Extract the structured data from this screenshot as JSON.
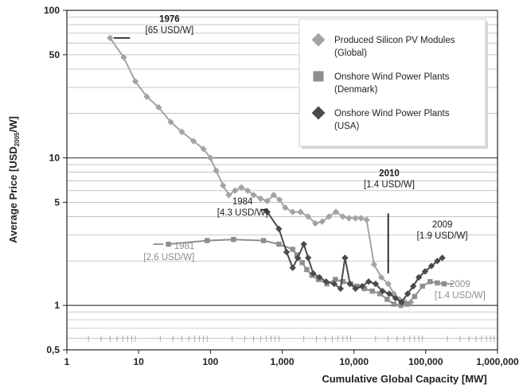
{
  "chart_data": {
    "type": "line",
    "xscale": "log",
    "yscale": "log",
    "xlim": [
      1,
      1000000
    ],
    "ylim": [
      0.5,
      100
    ],
    "xlabel": "Cumulative Global Capacity [MW]",
    "ylabel": {
      "pre": "Average Price [USD",
      "sub": "2005",
      "post": "/W]"
    },
    "x_ticks": [
      {
        "value": 1,
        "label": "1"
      },
      {
        "value": 10,
        "label": "10"
      },
      {
        "value": 100,
        "label": "100"
      },
      {
        "value": 1000,
        "label": "1,000"
      },
      {
        "value": 10000,
        "label": "10,000"
      },
      {
        "value": 100000,
        "label": "100,000"
      },
      {
        "value": 1000000,
        "label": "1,000,000"
      }
    ],
    "y_ticks": [
      {
        "value": 0.5,
        "label": "0,5"
      },
      {
        "value": 1,
        "label": "1"
      },
      {
        "value": 5,
        "label": "5"
      },
      {
        "value": 10,
        "label": "10"
      },
      {
        "value": 50,
        "label": "50"
      },
      {
        "value": 100,
        "label": "100"
      }
    ],
    "grid": true,
    "legend_position": "top-right",
    "series": [
      {
        "name": "Produced Silicon PV Modules (Global)",
        "legend_lines": [
          "Produced Silicon PV Modules",
          "(Global)"
        ],
        "marker": "diamond",
        "color": "#a3a3a3",
        "points": [
          [
            4,
            65
          ],
          [
            6.2,
            48
          ],
          [
            9,
            33
          ],
          [
            13,
            26
          ],
          [
            19,
            22
          ],
          [
            28,
            17.5
          ],
          [
            40,
            15
          ],
          [
            58,
            13
          ],
          [
            80,
            11.5
          ],
          [
            100,
            10
          ],
          [
            120,
            8.2
          ],
          [
            150,
            6.5
          ],
          [
            180,
            5.6
          ],
          [
            220,
            6
          ],
          [
            270,
            6.3
          ],
          [
            330,
            6
          ],
          [
            400,
            5.6
          ],
          [
            500,
            5.3
          ],
          [
            620,
            5.1
          ],
          [
            760,
            5.6
          ],
          [
            920,
            5.2
          ],
          [
            1100,
            4.6
          ],
          [
            1400,
            4.3
          ],
          [
            1800,
            4.3
          ],
          [
            2300,
            4
          ],
          [
            2900,
            3.6
          ],
          [
            3600,
            3.7
          ],
          [
            4500,
            4
          ],
          [
            5600,
            4.3
          ],
          [
            7000,
            4
          ],
          [
            8500,
            3.9
          ],
          [
            10500,
            3.9
          ],
          [
            12500,
            3.9
          ],
          [
            15000,
            3.8
          ],
          [
            19000,
            1.9
          ],
          [
            24000,
            1.55
          ],
          [
            30000,
            1.4
          ],
          [
            36000,
            1.2
          ],
          [
            43000,
            1.1
          ],
          [
            52000,
            1.05
          ],
          [
            62000,
            1.05
          ]
        ]
      },
      {
        "name": "Onshore Wind Power Plants (Denmark)",
        "legend_lines": [
          "Onshore Wind Power Plants",
          "(Denmark)"
        ],
        "marker": "square",
        "color": "#8e8e8e",
        "points": [
          [
            26,
            2.6
          ],
          [
            90,
            2.75
          ],
          [
            210,
            2.8
          ],
          [
            550,
            2.75
          ],
          [
            900,
            2.6
          ],
          [
            1400,
            2.4
          ],
          [
            1600,
            2.2
          ],
          [
            1900,
            1.95
          ],
          [
            2200,
            1.75
          ],
          [
            2600,
            1.6
          ],
          [
            3200,
            1.5
          ],
          [
            4200,
            1.4
          ],
          [
            5500,
            1.5
          ],
          [
            7000,
            1.45
          ],
          [
            9000,
            1.4
          ],
          [
            11000,
            1.35
          ],
          [
            14000,
            1.3
          ],
          [
            18000,
            1.25
          ],
          [
            23000,
            1.2
          ],
          [
            29000,
            1.1
          ],
          [
            36000,
            1.02
          ],
          [
            45000,
            1.0
          ],
          [
            55000,
            1.02
          ],
          [
            70000,
            1.15
          ],
          [
            90000,
            1.35
          ],
          [
            115000,
            1.45
          ],
          [
            145000,
            1.42
          ],
          [
            180000,
            1.4
          ]
        ]
      },
      {
        "name": "Onshore Wind Power Plants (USA)",
        "legend_lines": [
          "Onshore Wind Power Plants",
          "(USA)"
        ],
        "marker": "diamond",
        "color": "#4a4a4a",
        "points": [
          [
            620,
            4.3
          ],
          [
            900,
            3.3
          ],
          [
            1150,
            2.3
          ],
          [
            1400,
            1.8
          ],
          [
            1650,
            2.1
          ],
          [
            2000,
            2.6
          ],
          [
            2300,
            2.1
          ],
          [
            2700,
            1.65
          ],
          [
            3300,
            1.55
          ],
          [
            4100,
            1.45
          ],
          [
            5300,
            1.4
          ],
          [
            6500,
            1.3
          ],
          [
            7500,
            2.1
          ],
          [
            8800,
            1.4
          ],
          [
            10500,
            1.3
          ],
          [
            13000,
            1.35
          ],
          [
            16000,
            1.45
          ],
          [
            20000,
            1.4
          ],
          [
            25000,
            1.25
          ],
          [
            31000,
            1.2
          ],
          [
            38000,
            1.12
          ],
          [
            46000,
            1.05
          ],
          [
            56000,
            1.2
          ],
          [
            67000,
            1.35
          ],
          [
            80000,
            1.55
          ],
          [
            98000,
            1.7
          ],
          [
            120000,
            1.85
          ],
          [
            145000,
            2
          ],
          [
            170000,
            2.1
          ]
        ]
      }
    ],
    "annotations": [
      {
        "lines": [
          "1976",
          "[65 USD/W]"
        ],
        "color": "#1a1a1a"
      },
      {
        "lines": [
          "1984",
          "[4.3 USD/W]"
        ],
        "color": "#1a1a1a"
      },
      {
        "lines": [
          "1981",
          "[2.6 USD/W]"
        ],
        "color": "#8e8e8e"
      },
      {
        "lines": [
          "2010",
          "[1.4 USD/W]"
        ],
        "color": "#1a1a1a"
      },
      {
        "lines": [
          "2009",
          "[1.9 USD/W]"
        ],
        "color": "#1a1a1a"
      },
      {
        "lines": [
          "2009",
          "[1.4 USD/W]"
        ],
        "color": "#8e8e8e"
      }
    ]
  }
}
